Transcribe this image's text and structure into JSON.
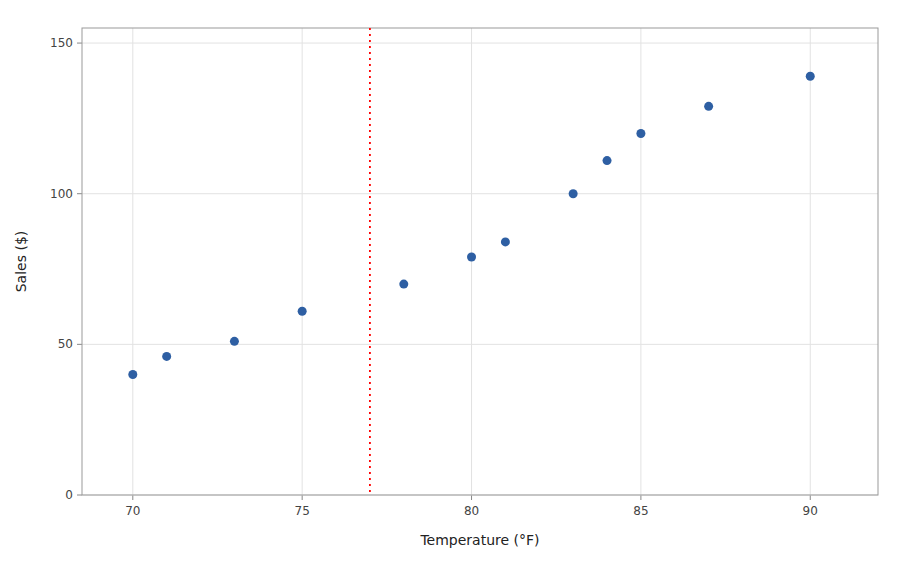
{
  "chart_data": {
    "type": "scatter",
    "x": [
      70,
      71,
      73,
      75,
      78,
      80,
      81,
      83,
      84,
      85,
      87,
      90
    ],
    "values": [
      40,
      46,
      51,
      61,
      70,
      79,
      84,
      100,
      111,
      120,
      129,
      139
    ],
    "color": "#2e5fa3",
    "xlabel": "Temperature (°F)",
    "ylabel": "Sales ($)",
    "xlim": [
      68.5,
      92
    ],
    "ylim": [
      0,
      155
    ],
    "xticks": [
      70,
      75,
      80,
      85,
      90
    ],
    "yticks": [
      0,
      50,
      100,
      150
    ],
    "grid": true,
    "vlines": [
      {
        "x": 77,
        "color": "#ff0000",
        "line_style": "dotted"
      }
    ]
  }
}
